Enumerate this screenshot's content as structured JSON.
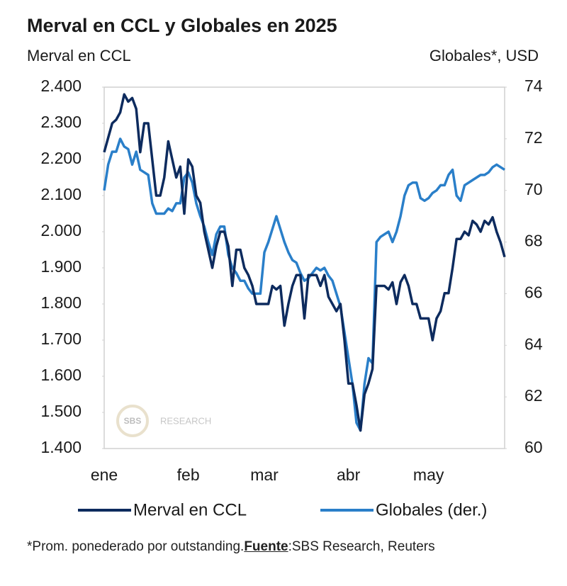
{
  "chart_data": {
    "type": "line",
    "title": "Merval en CCL y Globales en 2025",
    "y_axis_label": "Merval en CCL",
    "y2_axis_label": "Globales*, USD",
    "categories": [
      "ene",
      null,
      null,
      null,
      null,
      null,
      null,
      null,
      null,
      null,
      null,
      null,
      null,
      null,
      null,
      null,
      null,
      null,
      null,
      null,
      null,
      "feb",
      null,
      null,
      null,
      null,
      null,
      null,
      null,
      null,
      null,
      null,
      null,
      null,
      null,
      null,
      null,
      null,
      null,
      null,
      "mar",
      null,
      null,
      null,
      null,
      null,
      null,
      null,
      null,
      null,
      null,
      null,
      null,
      null,
      null,
      null,
      null,
      null,
      null,
      null,
      null,
      "abr",
      null,
      null,
      null,
      null,
      null,
      null,
      null,
      null,
      null,
      null,
      null,
      null,
      null,
      null,
      null,
      null,
      null,
      null,
      null,
      "may",
      null,
      null,
      null,
      null,
      null,
      null,
      null,
      null,
      null,
      null,
      null,
      null,
      null,
      null,
      null,
      null,
      null,
      null,
      null
    ],
    "series": [
      {
        "name": "Merval en CCL",
        "color": "#0d2b5e",
        "values": [
          2220,
          2260,
          2300,
          2310,
          2330,
          2380,
          2360,
          2370,
          2340,
          2220,
          2300,
          2300,
          2200,
          2100,
          2100,
          2150,
          2250,
          2200,
          2150,
          2180,
          2050,
          2200,
          2180,
          2100,
          2080,
          2000,
          1950,
          1900,
          1960,
          2000,
          2000,
          1960,
          1850,
          1950,
          1950,
          1900,
          1880,
          1850,
          1800,
          1800,
          1800,
          1800,
          1850,
          1840,
          1850,
          1740,
          1800,
          1850,
          1880,
          1880,
          1760,
          1880,
          1880,
          1880,
          1850,
          1880,
          1820,
          1800,
          1780,
          1800,
          1700,
          1580,
          1580,
          1520,
          1450,
          1550,
          1580,
          1620,
          1850,
          1850,
          1850,
          1840,
          1860,
          1800,
          1860,
          1880,
          1850,
          1800,
          1800,
          1760,
          1760,
          1760,
          1700,
          1760,
          1780,
          1830,
          1830,
          1900,
          1980,
          1980,
          2000,
          1990,
          2030,
          2020,
          2000,
          2030,
          2020,
          2040,
          2000,
          1970,
          1930
        ]
      },
      {
        "name": "Globales (der.)",
        "color": "#2a7fc9",
        "axis": "y2",
        "values": [
          70.0,
          71.0,
          71.5,
          71.5,
          72.0,
          71.7,
          71.6,
          71.0,
          71.5,
          70.8,
          70.7,
          70.6,
          69.5,
          69.1,
          69.1,
          69.1,
          69.3,
          69.2,
          69.5,
          69.5,
          70.5,
          70.7,
          70.3,
          69.5,
          69.0,
          68.6,
          68.0,
          67.5,
          68.3,
          68.6,
          68.6,
          67.5,
          67.0,
          66.8,
          66.5,
          66.5,
          66.2,
          66.0,
          66.0,
          66.0,
          67.6,
          68.0,
          68.5,
          69.0,
          68.5,
          68.0,
          67.6,
          67.3,
          67.2,
          66.8,
          66.5,
          66.6,
          66.8,
          67.0,
          66.9,
          67.0,
          66.7,
          66.5,
          66.0,
          65.5,
          64.5,
          63.5,
          62.5,
          61.0,
          60.7,
          62.5,
          63.5,
          63.3,
          68.0,
          68.2,
          68.3,
          68.4,
          68.0,
          68.4,
          69.0,
          69.8,
          70.2,
          70.3,
          70.3,
          69.7,
          69.6,
          69.7,
          69.9,
          70.0,
          70.2,
          70.2,
          70.6,
          70.8,
          69.8,
          69.6,
          70.2,
          70.3,
          70.4,
          70.5,
          70.6,
          70.6,
          70.7,
          70.9,
          71.0,
          70.9,
          70.8
        ]
      }
    ],
    "ylim": [
      1400,
      2400
    ],
    "yticks": [
      {
        "value": 1400,
        "label": "1.400"
      },
      {
        "value": 1500,
        "label": "1.500"
      },
      {
        "value": 1600,
        "label": "1.600"
      },
      {
        "value": 1700,
        "label": "1.700"
      },
      {
        "value": 1800,
        "label": "1.800"
      },
      {
        "value": 1900,
        "label": "1.900"
      },
      {
        "value": 2000,
        "label": "2.000"
      },
      {
        "value": 2100,
        "label": "2.100"
      },
      {
        "value": 2200,
        "label": "2.200"
      },
      {
        "value": 2300,
        "label": "2.300"
      },
      {
        "value": 2400,
        "label": "2.400"
      }
    ],
    "y2lim": [
      60,
      74
    ],
    "y2ticks": [
      60,
      62,
      64,
      66,
      68,
      70,
      72,
      74
    ],
    "grid": false,
    "legend": "bottom",
    "watermark_logo": "SBS",
    "watermark_text": "RESEARCH",
    "note": "*Prom. ponederado por outstanding.",
    "source_label": "Fuente",
    "source_text": ":SBS Research, Reuters"
  }
}
